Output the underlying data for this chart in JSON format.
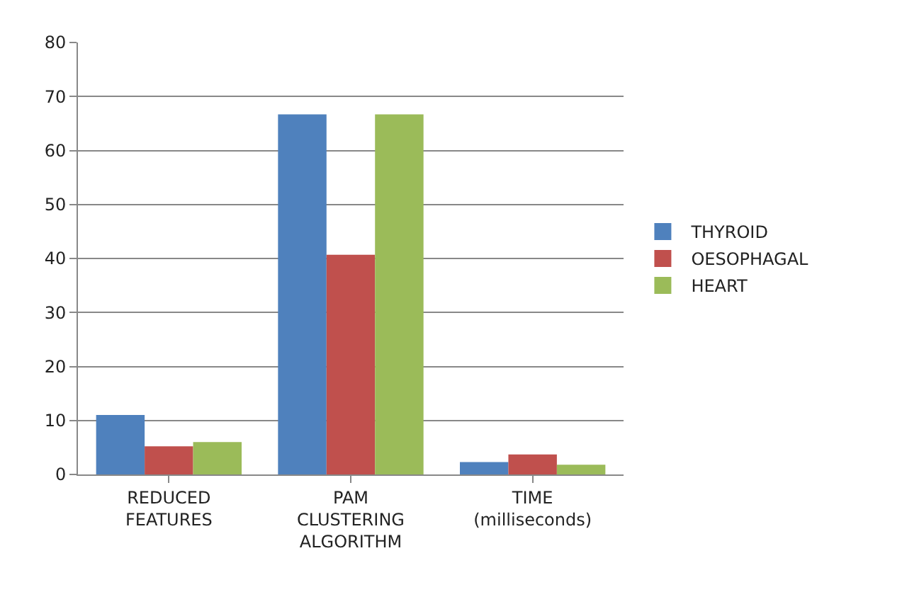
{
  "chart_data": {
    "type": "bar",
    "categories": [
      "REDUCED\nFEATURES",
      "PAM\nCLUSTERING\nALGORITHM",
      "TIME\n(milliseconds)"
    ],
    "series": [
      {
        "name": "THYROID",
        "color": "#4f81bd",
        "values": [
          11.0,
          66.7,
          2.3
        ]
      },
      {
        "name": "OESOPHAGAL",
        "color": "#c0504d",
        "values": [
          5.2,
          40.7,
          3.7
        ]
      },
      {
        "name": "HEART",
        "color": "#9bbb59",
        "values": [
          6.0,
          66.7,
          1.8
        ]
      }
    ],
    "ylim": [
      0,
      80
    ],
    "yticks": [
      0,
      10,
      20,
      30,
      40,
      50,
      60,
      70,
      80
    ],
    "grid": "y",
    "legend": "right"
  }
}
